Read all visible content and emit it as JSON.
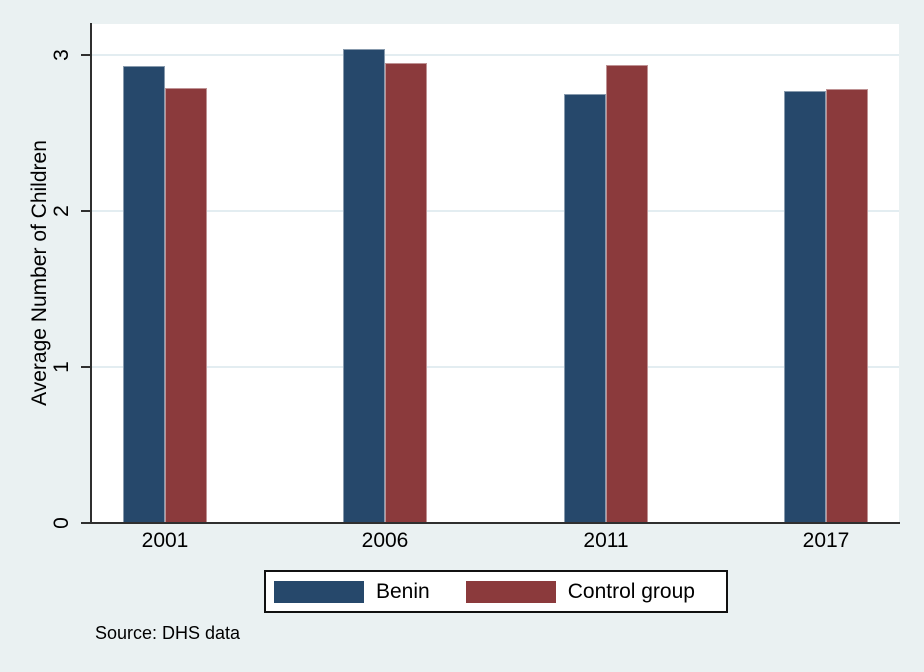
{
  "chart_data": {
    "type": "bar",
    "title": "",
    "xlabel": "",
    "ylabel": "Average Number of Children",
    "categories": [
      "2001",
      "2006",
      "2011",
      "2017"
    ],
    "series": [
      {
        "name": "Benin",
        "color": "#26486b",
        "values": [
          2.93,
          3.04,
          2.75,
          2.77
        ]
      },
      {
        "name": "Control group",
        "color": "#8b3a3c",
        "values": [
          2.79,
          2.95,
          2.94,
          2.78
        ]
      }
    ],
    "yticks": [
      0,
      1,
      2,
      3
    ],
    "ylim": [
      0,
      3.2
    ],
    "grid": true,
    "legend_position": "bottom-center",
    "note": "Source: DHS data",
    "background_color": "#eaf1f2",
    "plot_background_color": "#ffffff"
  }
}
